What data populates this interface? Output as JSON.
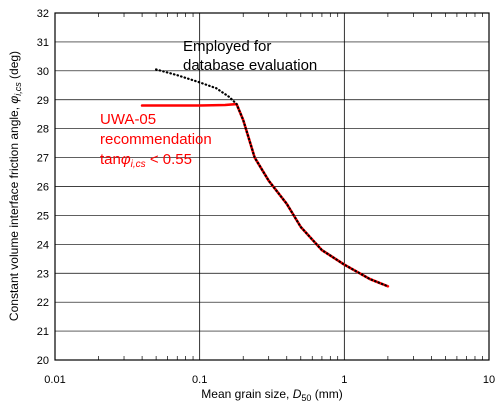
{
  "chart_data": {
    "type": "line",
    "title": "",
    "xlabel": "Mean grain size, D50 (mm)",
    "xlabel_parts": {
      "prefix": "Mean grain size, ",
      "var": "D",
      "sub": "50",
      "suffix": " (mm)"
    },
    "ylabel": "Constant volume interface friction angle, φi,cs (deg)",
    "ylabel_parts": {
      "prefix": "Constant volume interface friction angle, ",
      "var": "φ",
      "sub": "i,cs",
      "suffix": " (deg)"
    },
    "x_scale": "log",
    "xlim": [
      0.01,
      10
    ],
    "ylim": [
      20,
      32
    ],
    "x_ticks": [
      0.01,
      0.1,
      1,
      10
    ],
    "x_tick_labels": [
      "0.01",
      "0.1",
      "1",
      "10"
    ],
    "y_ticks": [
      20,
      21,
      22,
      23,
      24,
      25,
      26,
      27,
      28,
      29,
      30,
      31,
      32
    ],
    "y_tick_labels": [
      "20",
      "21",
      "22",
      "23",
      "24",
      "25",
      "26",
      "27",
      "28",
      "29",
      "30",
      "31",
      "32"
    ],
    "grid": true,
    "series": [
      {
        "style": "dotted",
        "color": "#000000",
        "x": [
          0.05,
          0.07,
          0.1,
          0.13,
          0.16,
          0.18,
          0.2,
          0.24,
          0.3,
          0.4,
          0.5,
          0.7,
          1.0,
          1.5,
          2.0
        ],
        "y": [
          30.05,
          29.85,
          29.6,
          29.4,
          29.1,
          28.85,
          28.3,
          27.0,
          26.2,
          25.4,
          24.6,
          23.8,
          23.3,
          22.8,
          22.55
        ]
      },
      {
        "style": "solid",
        "color": "#ff0000",
        "x": [
          0.04,
          0.1,
          0.15,
          0.18,
          0.2,
          0.24,
          0.3,
          0.4,
          0.5,
          0.7,
          1.0,
          1.5,
          2.0
        ],
        "y": [
          28.8,
          28.8,
          28.82,
          28.85,
          28.3,
          27.0,
          26.2,
          25.4,
          24.6,
          23.8,
          23.3,
          22.8,
          22.55
        ]
      }
    ],
    "annotations": {
      "black": [
        "Employed for",
        "database evaluation"
      ],
      "red_line1": "UWA-05",
      "red_line2": "recommendation",
      "red_line3": {
        "prefix": "tan",
        "var": "φ",
        "sub": "i,cs",
        "suffix": " < 0.55"
      }
    }
  }
}
